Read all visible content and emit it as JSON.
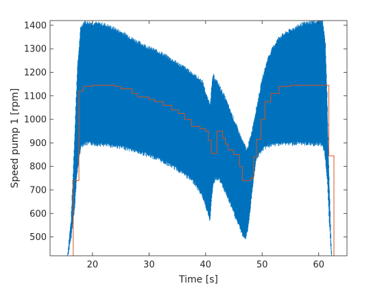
{
  "chart_data": {
    "type": "line",
    "xlabel": "Time [s]",
    "ylabel": "Speed pump 1 [rpm]",
    "xlim": [
      12.5,
      65
    ],
    "ylim": [
      420,
      1420
    ],
    "x_ticks": [
      20,
      30,
      40,
      50,
      60
    ],
    "y_ticks": [
      500,
      600,
      700,
      800,
      900,
      1000,
      1100,
      1200,
      1300,
      1400
    ],
    "grid": false,
    "colors": {
      "measured": "#0072BD",
      "reference": "#D95319",
      "axes": "#262626"
    },
    "series": [
      {
        "kind": "envelope",
        "upper": [
          [
            15.6,
            420
          ],
          [
            16.2,
            560
          ],
          [
            16.8,
            900
          ],
          [
            17.3,
            1200
          ],
          [
            17.9,
            1380
          ],
          [
            18.5,
            1405
          ],
          [
            20,
            1400
          ],
          [
            22,
            1395
          ],
          [
            24,
            1375
          ],
          [
            26,
            1350
          ],
          [
            28,
            1320
          ],
          [
            30,
            1295
          ],
          [
            32,
            1275
          ],
          [
            34,
            1245
          ],
          [
            36,
            1215
          ],
          [
            38,
            1180
          ],
          [
            39.5,
            1150
          ],
          [
            40.3,
            1080
          ],
          [
            40.8,
            1060
          ],
          [
            41.3,
            1180
          ],
          [
            41.8,
            1160
          ],
          [
            42.5,
            1130
          ],
          [
            43.5,
            1080
          ],
          [
            44.5,
            1020
          ],
          [
            45.5,
            960
          ],
          [
            46.5,
            900
          ],
          [
            47.3,
            860
          ],
          [
            48,
            920
          ],
          [
            49,
            1040
          ],
          [
            50,
            1160
          ],
          [
            51,
            1250
          ],
          [
            52,
            1300
          ],
          [
            53,
            1340
          ],
          [
            55,
            1370
          ],
          [
            57,
            1395
          ],
          [
            59,
            1405
          ],
          [
            60.7,
            1410
          ],
          [
            61.2,
            1310
          ],
          [
            61.5,
            1100
          ],
          [
            61.8,
            800
          ],
          [
            62.1,
            540
          ],
          [
            62.3,
            420
          ]
        ],
        "lower": [
          [
            15.6,
            420
          ],
          [
            16.2,
            500
          ],
          [
            16.8,
            620
          ],
          [
            17.3,
            780
          ],
          [
            17.9,
            890
          ],
          [
            18.5,
            905
          ],
          [
            20,
            905
          ],
          [
            22,
            900
          ],
          [
            24,
            895
          ],
          [
            26,
            885
          ],
          [
            28,
            870
          ],
          [
            30,
            855
          ],
          [
            32,
            835
          ],
          [
            34,
            810
          ],
          [
            36,
            780
          ],
          [
            38,
            740
          ],
          [
            39.5,
            680
          ],
          [
            40.3,
            620
          ],
          [
            40.8,
            580
          ],
          [
            41.3,
            730
          ],
          [
            41.8,
            760
          ],
          [
            42.5,
            750
          ],
          [
            43.5,
            700
          ],
          [
            44.5,
            640
          ],
          [
            45.5,
            580
          ],
          [
            46.5,
            520
          ],
          [
            47,
            500
          ],
          [
            47.5,
            540
          ],
          [
            48,
            650
          ],
          [
            48.5,
            760
          ],
          [
            49,
            840
          ],
          [
            50,
            880
          ],
          [
            51,
            895
          ],
          [
            53,
            905
          ],
          [
            55,
            905
          ],
          [
            58,
            905
          ],
          [
            60.5,
            900
          ],
          [
            61,
            880
          ],
          [
            61.5,
            760
          ],
          [
            61.8,
            600
          ],
          [
            62.1,
            480
          ],
          [
            62.3,
            420
          ]
        ]
      },
      {
        "kind": "step",
        "points": [
          [
            16.6,
            420
          ],
          [
            16.6,
            740
          ],
          [
            17.6,
            740
          ],
          [
            17.6,
            1120
          ],
          [
            18.4,
            1120
          ],
          [
            18.4,
            1140
          ],
          [
            20,
            1140
          ],
          [
            20,
            1145
          ],
          [
            24,
            1145
          ],
          [
            24,
            1140
          ],
          [
            25,
            1140
          ],
          [
            25,
            1130
          ],
          [
            27,
            1130
          ],
          [
            27,
            1110
          ],
          [
            28,
            1110
          ],
          [
            28,
            1095
          ],
          [
            30,
            1095
          ],
          [
            30,
            1085
          ],
          [
            31,
            1085
          ],
          [
            31,
            1075
          ],
          [
            32.5,
            1075
          ],
          [
            32.5,
            1060
          ],
          [
            34,
            1060
          ],
          [
            34,
            1040
          ],
          [
            35.2,
            1040
          ],
          [
            35.2,
            1025
          ],
          [
            36.3,
            1025
          ],
          [
            36.3,
            1000
          ],
          [
            37.5,
            1000
          ],
          [
            37.5,
            970
          ],
          [
            39,
            970
          ],
          [
            39,
            960
          ],
          [
            40,
            960
          ],
          [
            40,
            950
          ],
          [
            40.5,
            950
          ],
          [
            40.5,
            910
          ],
          [
            41,
            910
          ],
          [
            41,
            855
          ],
          [
            42,
            855
          ],
          [
            42,
            950
          ],
          [
            43,
            950
          ],
          [
            43,
            920
          ],
          [
            43.5,
            920
          ],
          [
            43.5,
            895
          ],
          [
            44,
            895
          ],
          [
            44,
            870
          ],
          [
            45,
            870
          ],
          [
            45,
            850
          ],
          [
            46,
            850
          ],
          [
            46,
            800
          ],
          [
            46.5,
            800
          ],
          [
            46.5,
            740
          ],
          [
            48,
            740
          ],
          [
            48,
            750
          ],
          [
            48.5,
            750
          ],
          [
            48.5,
            840
          ],
          [
            49,
            840
          ],
          [
            49,
            915
          ],
          [
            49.8,
            915
          ],
          [
            49.8,
            1000
          ],
          [
            50.5,
            1000
          ],
          [
            50.5,
            1075
          ],
          [
            51.5,
            1075
          ],
          [
            51.5,
            1110
          ],
          [
            53,
            1110
          ],
          [
            53,
            1140
          ],
          [
            55,
            1140
          ],
          [
            55,
            1145
          ],
          [
            61.8,
            1145
          ],
          [
            61.8,
            845
          ],
          [
            62.7,
            845
          ],
          [
            62.7,
            420
          ]
        ]
      }
    ]
  }
}
